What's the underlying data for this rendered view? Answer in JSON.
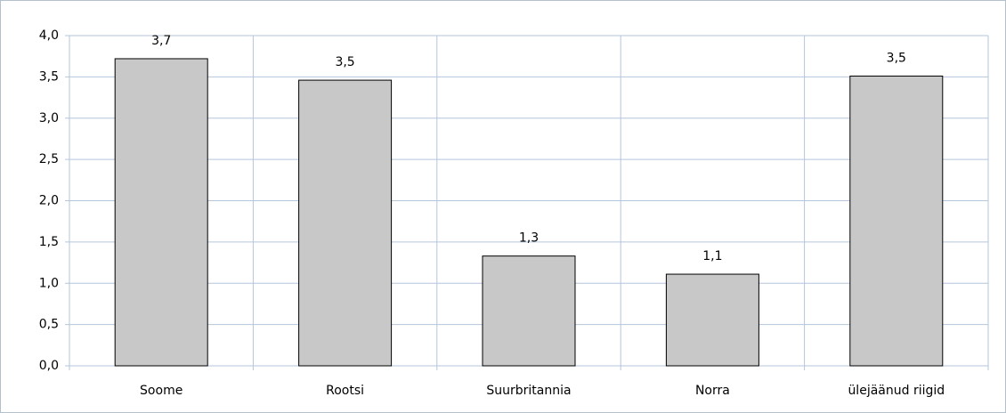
{
  "chart_data": {
    "type": "bar",
    "categories": [
      "Soome",
      "Rootsi",
      "Suurbritannia",
      "Norra",
      "ülejäänud riigid"
    ],
    "values": [
      3.72,
      3.46,
      1.33,
      1.11,
      3.51
    ],
    "value_labels": [
      "3,7",
      "3,5",
      "1,3",
      "1,1",
      "3,5"
    ],
    "color": "#c8c8c8",
    "ylim": [
      0,
      4
    ],
    "yticks": [
      {
        "value": 0,
        "label": "0,0"
      },
      {
        "value": 0.5,
        "label": "0,5"
      },
      {
        "value": 1,
        "label": "1,0"
      },
      {
        "value": 1.5,
        "label": "1,5"
      },
      {
        "value": 2,
        "label": "2,0"
      },
      {
        "value": 2.5,
        "label": "2,5"
      },
      {
        "value": 3,
        "label": "3,0"
      },
      {
        "value": 3.5,
        "label": "3,5"
      },
      {
        "value": 4,
        "label": "4,0"
      }
    ],
    "grid": true
  }
}
